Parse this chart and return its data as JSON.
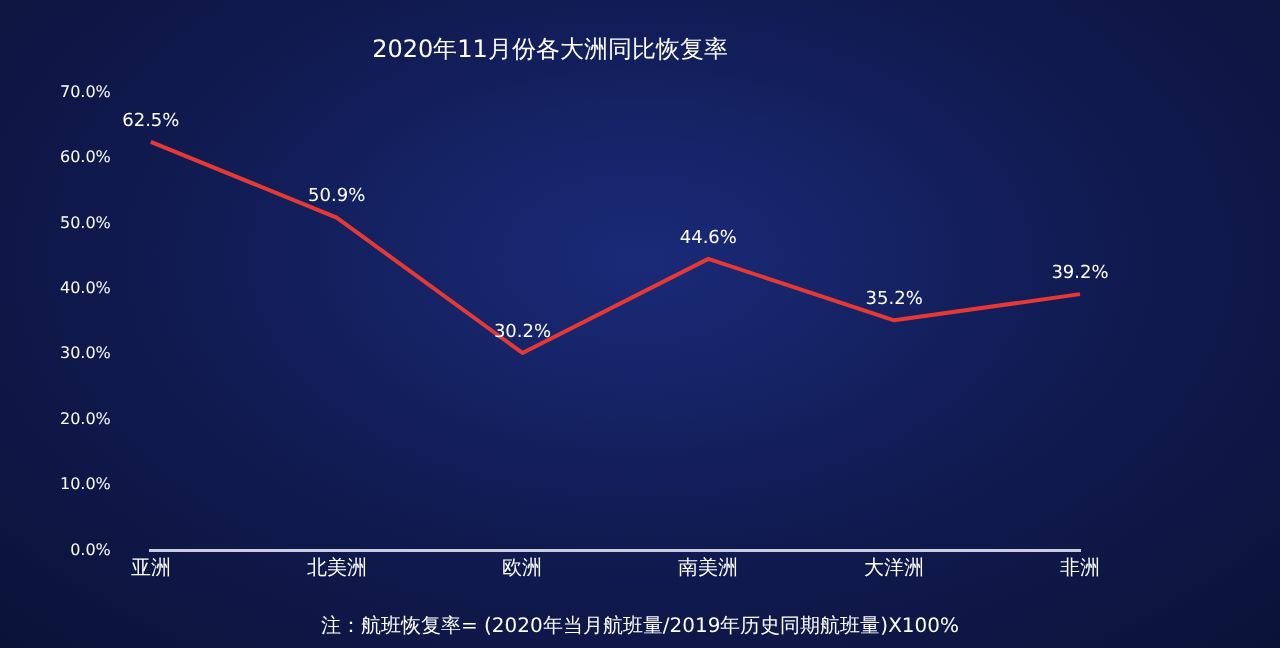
{
  "chart_data": {
    "type": "line",
    "title": "2020年11月份各大洲同比恢复率",
    "categories": [
      "亚洲",
      "北美洲",
      "欧洲",
      "南美洲",
      "大洋洲",
      "非洲"
    ],
    "series": [
      {
        "color": "#e53935",
        "values": [
          62.5,
          50.9,
          30.2,
          44.6,
          35.2,
          39.2
        ],
        "value_labels": [
          "62.5%",
          "50.9%",
          "30.2%",
          "44.6%",
          "35.2%",
          "39.2%"
        ]
      }
    ],
    "ylim": [
      0,
      70
    ],
    "yticks": [
      {
        "value": 0,
        "label": "0.0%"
      },
      {
        "value": 10,
        "label": "10.0%"
      },
      {
        "value": 20,
        "label": "20.0%"
      },
      {
        "value": 30,
        "label": "30.0%"
      },
      {
        "value": 40,
        "label": "40.0%"
      },
      {
        "value": 50,
        "label": "50.0%"
      },
      {
        "value": 60,
        "label": "60.0%"
      },
      {
        "value": 70,
        "label": "70.0%"
      }
    ],
    "grid": false,
    "legend": false,
    "marker": "none",
    "line_style": "solid",
    "annotations": [
      "注：航班恢复率= (2020年当月航班量/2019年历史同期航班量)X100%"
    ]
  }
}
